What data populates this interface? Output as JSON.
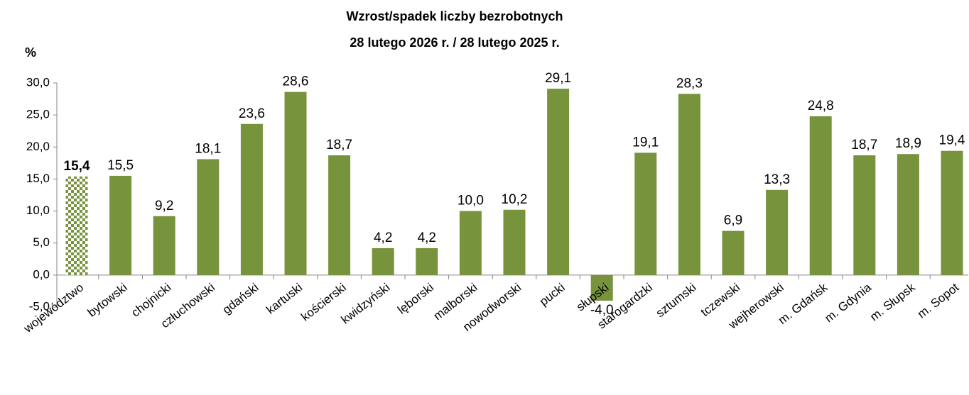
{
  "chart_data": {
    "type": "bar",
    "title": "Wzrost/spadek liczby bezrobotnych",
    "subtitle": "28 lutego 2026 r. / 28 lutego 2025 r.",
    "y_label": "%",
    "categories": [
      "województwo",
      "bytowski",
      "chojnicki",
      "człuchowski",
      "gdański",
      "kartuski",
      "kościerski",
      "kwidzyński",
      "lęborski",
      "malborski",
      "nowodworski",
      "pucki",
      "słupski",
      "starogardzki",
      "sztumski",
      "tczewski",
      "wejherowski",
      "m. Gdańsk",
      "m. Gdynia",
      "m. Słupsk",
      "m. Sopot"
    ],
    "values": [
      15.4,
      15.5,
      9.2,
      18.1,
      23.6,
      28.6,
      18.7,
      4.2,
      4.2,
      10.0,
      10.2,
      29.1,
      -4.0,
      19.1,
      28.3,
      6.9,
      13.3,
      24.8,
      18.7,
      18.9,
      19.4
    ],
    "value_labels": [
      "15,4",
      "15,5",
      "9,2",
      "18,1",
      "23,6",
      "28,6",
      "18,7",
      "4,2",
      "4,2",
      "10,0",
      "10,2",
      "29,1",
      "-4,0",
      "19,1",
      "28,3",
      "6,9",
      "13,3",
      "24,8",
      "18,7",
      "18,9",
      "19,4"
    ],
    "color": "#77933c",
    "ylim": [
      -5,
      30
    ],
    "yticks": [
      {
        "value": -5,
        "label": "-5,0"
      },
      {
        "value": 0,
        "label": "0,0"
      },
      {
        "value": 5,
        "label": "5,0"
      },
      {
        "value": 10,
        "label": "10,0"
      },
      {
        "value": 15,
        "label": "15,0"
      },
      {
        "value": 20,
        "label": "20,0"
      },
      {
        "value": 25,
        "label": "25,0"
      },
      {
        "value": 30,
        "label": "30,0"
      }
    ],
    "grid": false
  }
}
